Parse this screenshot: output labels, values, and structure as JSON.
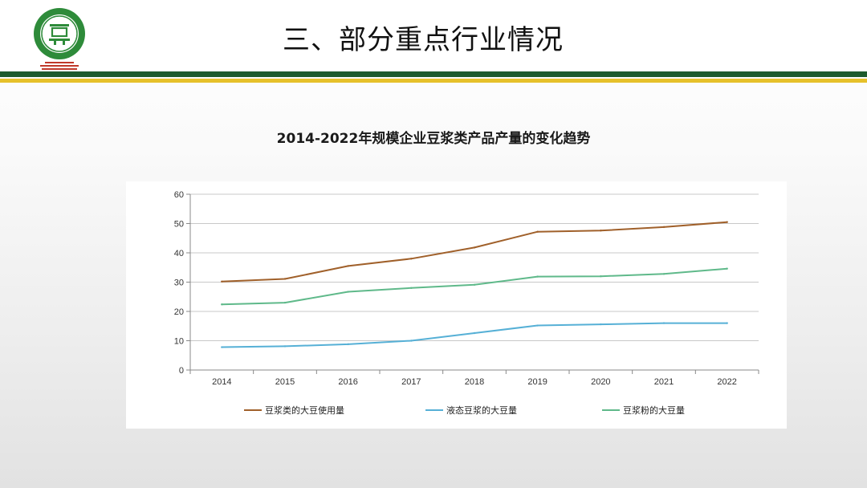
{
  "slide": {
    "title": "三、部分重点行业情况"
  },
  "colors": {
    "header_green": "#1c5a2c",
    "header_yellow": "#e6c12b",
    "logo_green": "#2e8b3a",
    "logo_red": "#c0392b"
  },
  "chart_data": {
    "type": "line",
    "title": "2014-2022年规模企业豆浆类产品产量的变化趋势",
    "xlabel": "",
    "ylabel": "",
    "x": [
      "2014",
      "2015",
      "2016",
      "2017",
      "2018",
      "2019",
      "2020",
      "2021",
      "2022"
    ],
    "ylim": [
      0,
      60
    ],
    "yticks": [
      0,
      10,
      20,
      30,
      40,
      50,
      60
    ],
    "grid": true,
    "legend_position": "bottom",
    "series": [
      {
        "name": "豆浆类的大豆使用量",
        "color": "#a0602a",
        "values": [
          30.2,
          31.1,
          35.5,
          38.0,
          41.8,
          47.2,
          47.6,
          48.8,
          50.5
        ]
      },
      {
        "name": "液态豆浆的大豆量",
        "color": "#56b0d6",
        "values": [
          7.8,
          8.1,
          8.8,
          10.0,
          12.6,
          15.2,
          15.6,
          16.0,
          16.0
        ]
      },
      {
        "name": "豆浆粉的大豆量",
        "color": "#5fb98a",
        "values": [
          22.4,
          23.0,
          26.7,
          28.0,
          29.1,
          31.9,
          32.0,
          32.8,
          34.6
        ]
      }
    ]
  }
}
